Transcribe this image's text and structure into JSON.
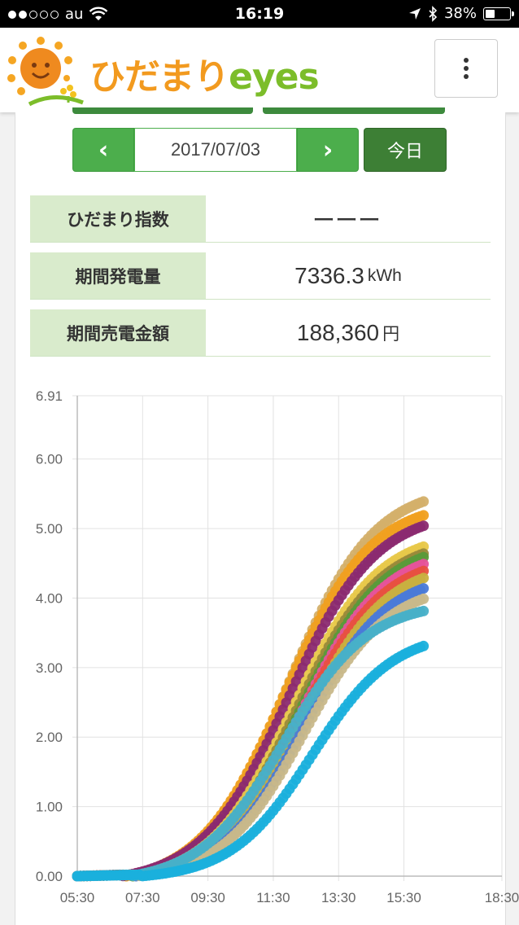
{
  "status_bar": {
    "carrier": "au",
    "time": "16:19",
    "battery": "38%",
    "battery_level": 0.38
  },
  "header": {
    "logo_jp": "ひだまり",
    "logo_en": "eyes"
  },
  "date_nav": {
    "prev": "‹",
    "date": "2017/07/03",
    "next": "›",
    "today": "今日"
  },
  "stats": [
    {
      "label": "ひだまり指数",
      "value": "ーーー",
      "unit": ""
    },
    {
      "label": "期間発電量",
      "value": "7336.3",
      "unit": "kWh"
    },
    {
      "label": "期間売電金額",
      "value": "188,360",
      "unit": "円"
    }
  ],
  "chart_data": {
    "type": "scatter",
    "x_ticks": [
      "05:30",
      "07:30",
      "09:30",
      "11:30",
      "13:30",
      "15:30",
      "18:30"
    ],
    "x_tick_minutes": [
      330,
      450,
      570,
      690,
      810,
      930,
      1110
    ],
    "y_ticks": [
      "0.00",
      "1.00",
      "2.00",
      "3.00",
      "4.00",
      "5.00",
      "6.00",
      "6.91"
    ],
    "ylim": [
      0,
      6.91
    ],
    "xlim_minutes": [
      330,
      1110
    ],
    "series": [
      {
        "name": "s1",
        "color": "#d4b06a",
        "end": 5.4,
        "t": 0.54,
        "lag": 0
      },
      {
        "name": "s2",
        "color": "#f0a020",
        "end": 5.2,
        "t": 0.53,
        "lag": 0
      },
      {
        "name": "s3",
        "color": "#8b2a70",
        "end": 5.05,
        "t": 0.55,
        "lag": -8
      },
      {
        "name": "s4",
        "color": "#e8c84a",
        "end": 4.75,
        "t": 0.55,
        "lag": 10
      },
      {
        "name": "s5",
        "color": "#9a8a3a",
        "end": 4.65,
        "t": 0.56,
        "lag": 10
      },
      {
        "name": "s6",
        "color": "#5a9a3a",
        "end": 4.6,
        "t": 0.57,
        "lag": 12
      },
      {
        "name": "s7",
        "color": "#e6539a",
        "end": 4.5,
        "t": 0.57,
        "lag": 14
      },
      {
        "name": "s8",
        "color": "#e85040",
        "end": 4.4,
        "t": 0.57,
        "lag": 14
      },
      {
        "name": "s9",
        "color": "#c8b040",
        "end": 4.3,
        "t": 0.58,
        "lag": 16
      },
      {
        "name": "s10",
        "color": "#4a7ad8",
        "end": 4.15,
        "t": 0.58,
        "lag": 18
      },
      {
        "name": "s11",
        "color": "#c8b88a",
        "end": 4.0,
        "t": 0.58,
        "lag": 20
      },
      {
        "name": "s12",
        "color": "#48b0c8",
        "end": 3.82,
        "t": 0.52,
        "lag": 8
      },
      {
        "name": "s13",
        "color": "#1ab0dc",
        "end": 3.32,
        "t": 0.6,
        "lag": 28
      }
    ]
  }
}
